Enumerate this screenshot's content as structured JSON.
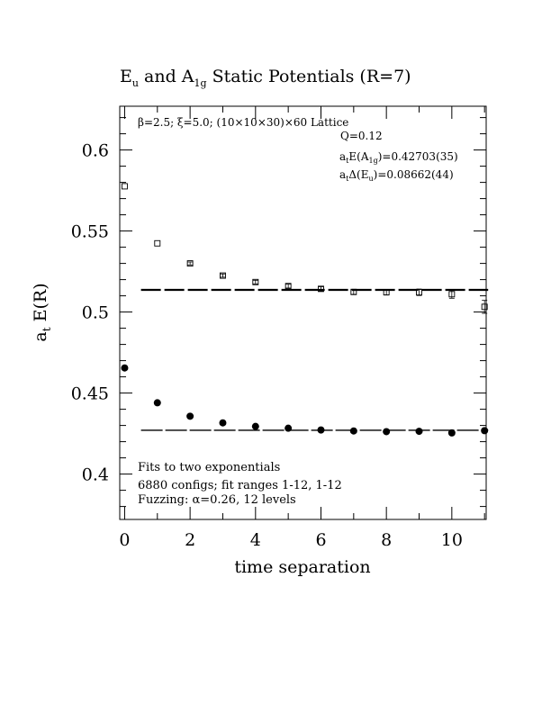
{
  "chart_data": {
    "type": "scatter",
    "title": "E_u and A_1g Static Potentials (R=7)",
    "title_parts": {
      "prefix": "E",
      "sub1": "u",
      "mid": " and A",
      "sub2": "1g",
      "suffix": " Static Potentials (R=7)"
    },
    "xlabel": "time separation",
    "ylabel": "a_t E(R)",
    "ylabel_parts": {
      "a": "a",
      "sub": "t",
      "rest": " E(R)"
    },
    "xlim": [
      -0.15,
      11.05
    ],
    "ylim": [
      0.372,
      0.627
    ],
    "x_ticks": [
      0,
      2,
      4,
      6,
      8,
      10
    ],
    "x_tick_labels": [
      "0",
      "2",
      "4",
      "6",
      "8",
      "10"
    ],
    "y_ticks": [
      0.4,
      0.45,
      0.5,
      0.55,
      0.6
    ],
    "y_tick_labels": [
      "0.4",
      "0.45",
      "0.5",
      "0.55",
      "0.6"
    ],
    "grid": false,
    "annotations": {
      "lattice": "β=2.5; ξ=5.0; (10×10×30)×60 Lattice",
      "q": "Q=0.12",
      "energy_prefix": "a",
      "energy_sub": "t",
      "energy_mid": "E(A",
      "energy_sub2": "1g",
      "energy_value": ")=0.42703(35)",
      "gap_prefix": "a",
      "gap_sub": "t",
      "gap_mid": "Δ(E",
      "gap_sub2": "u",
      "gap_value": ")=0.08662(44)",
      "fits": "Fits to two exponentials",
      "configs": "6880 configs; fit ranges 1-12, 1-12",
      "fuzzing": "Fuzzing: α=0.26, 12 levels"
    },
    "series": [
      {
        "marker": "filled-circle",
        "x": [
          0,
          1,
          2,
          3,
          4,
          5,
          6,
          7,
          8,
          9,
          10,
          11
        ],
        "y": [
          0.4655,
          0.444,
          0.4357,
          0.4316,
          0.4294,
          0.4283,
          0.4272,
          0.4266,
          0.4262,
          0.4264,
          0.4254,
          0.4268
        ],
        "err": [
          0.0004,
          0.0004,
          0.0004,
          0.0005,
          0.0005,
          0.0006,
          0.0006,
          0.0007,
          0.0008,
          0.0009,
          0.001,
          0.0011
        ],
        "fit_value": 0.42703,
        "fit_range": [
          0.5,
          11
        ]
      },
      {
        "marker": "open-square",
        "x": [
          0,
          1,
          2,
          3,
          4,
          5,
          6,
          7,
          8,
          9,
          10,
          11
        ],
        "y": [
          0.5776,
          0.5424,
          0.53,
          0.5225,
          0.5185,
          0.516,
          0.5143,
          0.5124,
          0.5122,
          0.5122,
          0.511,
          0.5032
        ],
        "err": [
          0.0008,
          0.0008,
          0.0009,
          0.001,
          0.0011,
          0.0012,
          0.0013,
          0.0015,
          0.0017,
          0.002,
          0.0025,
          0.004
        ],
        "fit_value": 0.51365,
        "fit_range": [
          0.5,
          11
        ]
      }
    ]
  }
}
